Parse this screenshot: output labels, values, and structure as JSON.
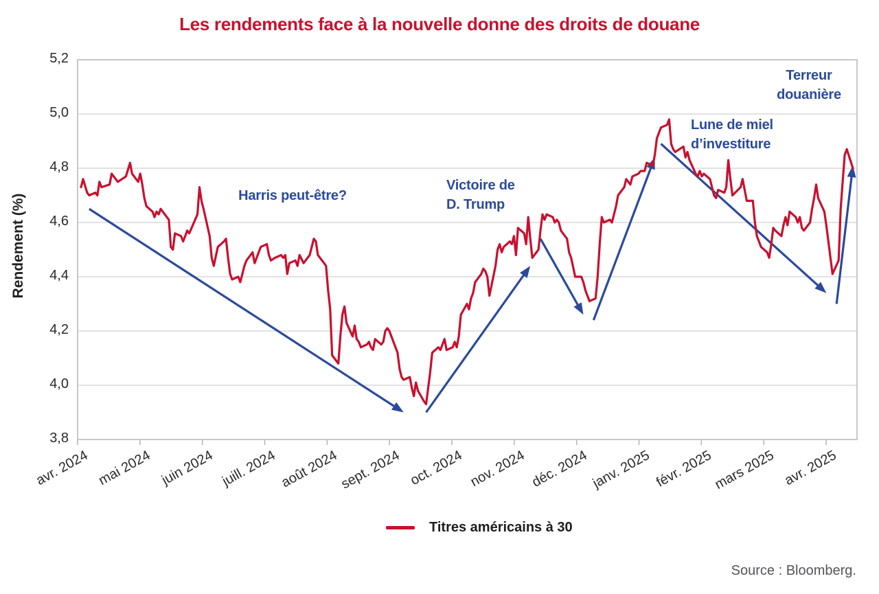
{
  "title": {
    "text": "Les rendements face à la nouvelle donne des droits de douane",
    "color": "#c3142f"
  },
  "y_axis": {
    "label": "Rendement (%)",
    "ticks": [
      "5,2",
      "5,0",
      "4,8",
      "4,6",
      "4,4",
      "4,2",
      "4,0",
      "3,8"
    ],
    "tick_values": [
      5.2,
      5.0,
      4.8,
      4.6,
      4.4,
      4.2,
      4.0,
      3.8
    ]
  },
  "x_axis": {
    "ticks": [
      "avr. 2024",
      "mai 2024",
      "juin 2024",
      "juill. 2024",
      "août 2024",
      "sept. 2024",
      "oct. 2024",
      "nov. 2024",
      "déc. 2024",
      "janv. 2025",
      "févr. 2025",
      "mars 2025",
      "avr. 2025"
    ]
  },
  "annotations": [
    {
      "text": "Harris peut-être?"
    },
    {
      "text": "Victoire de\nD. Trump"
    },
    {
      "text": "Lune de miel\nd’investiture"
    },
    {
      "text": "Terreur\ndouanière"
    }
  ],
  "legend": {
    "label": "Titres américains à 30",
    "swatch_color": "#c8102e"
  },
  "source": {
    "text": "Source : Bloomberg."
  },
  "colors": {
    "line": "#c8102e",
    "annotation_blue": "#2a4a9c",
    "grid": "#d8d8d8",
    "frame": "#c7c7c7"
  },
  "chart_data": {
    "type": "line",
    "title": "Les rendements face à la nouvelle donne des droits de douane",
    "ylabel": "Rendement (%)",
    "ylim": [
      3.8,
      5.2
    ],
    "ytick_step": 0.2,
    "grid": "horizontal",
    "legend_position": "bottom-center",
    "x_range": [
      "2024-04-01",
      "2025-04-14"
    ],
    "series": [
      {
        "name": "Titres américains à 30",
        "color": "#c8102e",
        "points": [
          [
            "2024-04-01",
            4.73
          ],
          [
            "2024-04-02",
            4.76
          ],
          [
            "2024-04-04",
            4.71
          ],
          [
            "2024-04-05",
            4.7
          ],
          [
            "2024-04-08",
            4.71
          ],
          [
            "2024-04-09",
            4.7
          ],
          [
            "2024-04-10",
            4.75
          ],
          [
            "2024-04-11",
            4.73
          ],
          [
            "2024-04-15",
            4.74
          ],
          [
            "2024-04-16",
            4.78
          ],
          [
            "2024-04-19",
            4.75
          ],
          [
            "2024-04-23",
            4.77
          ],
          [
            "2024-04-25",
            4.82
          ],
          [
            "2024-04-26",
            4.78
          ],
          [
            "2024-04-29",
            4.75
          ],
          [
            "2024-04-30",
            4.78
          ],
          [
            "2024-05-01",
            4.74
          ],
          [
            "2024-05-02",
            4.69
          ],
          [
            "2024-05-03",
            4.66
          ],
          [
            "2024-05-06",
            4.64
          ],
          [
            "2024-05-07",
            4.62
          ],
          [
            "2024-05-08",
            4.64
          ],
          [
            "2024-05-09",
            4.63
          ],
          [
            "2024-05-10",
            4.65
          ],
          [
            "2024-05-13",
            4.62
          ],
          [
            "2024-05-14",
            4.61
          ],
          [
            "2024-05-15",
            4.51
          ],
          [
            "2024-05-16",
            4.5
          ],
          [
            "2024-05-17",
            4.56
          ],
          [
            "2024-05-20",
            4.55
          ],
          [
            "2024-05-21",
            4.53
          ],
          [
            "2024-05-22",
            4.55
          ],
          [
            "2024-05-23",
            4.57
          ],
          [
            "2024-05-24",
            4.56
          ],
          [
            "2024-05-28",
            4.63
          ],
          [
            "2024-05-29",
            4.73
          ],
          [
            "2024-05-30",
            4.68
          ],
          [
            "2024-05-31",
            4.65
          ],
          [
            "2024-06-03",
            4.55
          ],
          [
            "2024-06-04",
            4.47
          ],
          [
            "2024-06-05",
            4.44
          ],
          [
            "2024-06-07",
            4.51
          ],
          [
            "2024-06-10",
            4.53
          ],
          [
            "2024-06-11",
            4.54
          ],
          [
            "2024-06-12",
            4.47
          ],
          [
            "2024-06-13",
            4.41
          ],
          [
            "2024-06-14",
            4.39
          ],
          [
            "2024-06-17",
            4.4
          ],
          [
            "2024-06-18",
            4.38
          ],
          [
            "2024-06-20",
            4.44
          ],
          [
            "2024-06-21",
            4.46
          ],
          [
            "2024-06-24",
            4.49
          ],
          [
            "2024-06-25",
            4.45
          ],
          [
            "2024-06-26",
            4.47
          ],
          [
            "2024-06-27",
            4.49
          ],
          [
            "2024-06-28",
            4.51
          ],
          [
            "2024-07-01",
            4.52
          ],
          [
            "2024-07-02",
            4.48
          ],
          [
            "2024-07-03",
            4.46
          ],
          [
            "2024-07-05",
            4.47
          ],
          [
            "2024-07-08",
            4.48
          ],
          [
            "2024-07-09",
            4.47
          ],
          [
            "2024-07-10",
            4.48
          ],
          [
            "2024-07-11",
            4.41
          ],
          [
            "2024-07-12",
            4.45
          ],
          [
            "2024-07-15",
            4.46
          ],
          [
            "2024-07-16",
            4.44
          ],
          [
            "2024-07-17",
            4.48
          ],
          [
            "2024-07-19",
            4.45
          ],
          [
            "2024-07-22",
            4.48
          ],
          [
            "2024-07-24",
            4.54
          ],
          [
            "2024-07-25",
            4.53
          ],
          [
            "2024-07-26",
            4.48
          ],
          [
            "2024-07-29",
            4.45
          ],
          [
            "2024-07-30",
            4.44
          ],
          [
            "2024-07-31",
            4.35
          ],
          [
            "2024-08-01",
            4.28
          ],
          [
            "2024-08-02",
            4.11
          ],
          [
            "2024-08-05",
            4.08
          ],
          [
            "2024-08-06",
            4.18
          ],
          [
            "2024-08-07",
            4.26
          ],
          [
            "2024-08-08",
            4.29
          ],
          [
            "2024-08-09",
            4.23
          ],
          [
            "2024-08-12",
            4.18
          ],
          [
            "2024-08-13",
            4.22
          ],
          [
            "2024-08-14",
            4.17
          ],
          [
            "2024-08-15",
            4.16
          ],
          [
            "2024-08-16",
            4.14
          ],
          [
            "2024-08-19",
            4.15
          ],
          [
            "2024-08-20",
            4.16
          ],
          [
            "2024-08-21",
            4.14
          ],
          [
            "2024-08-22",
            4.13
          ],
          [
            "2024-08-23",
            4.17
          ],
          [
            "2024-08-26",
            4.15
          ],
          [
            "2024-08-27",
            4.16
          ],
          [
            "2024-08-28",
            4.2
          ],
          [
            "2024-08-29",
            4.21
          ],
          [
            "2024-08-30",
            4.2
          ],
          [
            "2024-09-03",
            4.12
          ],
          [
            "2024-09-04",
            4.06
          ],
          [
            "2024-09-05",
            4.03
          ],
          [
            "2024-09-06",
            4.02
          ],
          [
            "2024-09-09",
            4.03
          ],
          [
            "2024-09-10",
            3.99
          ],
          [
            "2024-09-11",
            3.96
          ],
          [
            "2024-09-12",
            4.01
          ],
          [
            "2024-09-13",
            3.98
          ],
          [
            "2024-09-16",
            3.94
          ],
          [
            "2024-09-17",
            3.93
          ],
          [
            "2024-09-18",
            3.99
          ],
          [
            "2024-09-19",
            4.05
          ],
          [
            "2024-09-20",
            4.12
          ],
          [
            "2024-09-23",
            4.14
          ],
          [
            "2024-09-24",
            4.13
          ],
          [
            "2024-09-25",
            4.15
          ],
          [
            "2024-09-26",
            4.17
          ],
          [
            "2024-09-27",
            4.13
          ],
          [
            "2024-09-30",
            4.14
          ],
          [
            "2024-10-01",
            4.16
          ],
          [
            "2024-10-02",
            4.14
          ],
          [
            "2024-10-03",
            4.18
          ],
          [
            "2024-10-04",
            4.26
          ],
          [
            "2024-10-07",
            4.3
          ],
          [
            "2024-10-08",
            4.28
          ],
          [
            "2024-10-09",
            4.32
          ],
          [
            "2024-10-10",
            4.34
          ],
          [
            "2024-10-11",
            4.38
          ],
          [
            "2024-10-14",
            4.41
          ],
          [
            "2024-10-15",
            4.43
          ],
          [
            "2024-10-16",
            4.42
          ],
          [
            "2024-10-17",
            4.4
          ],
          [
            "2024-10-18",
            4.33
          ],
          [
            "2024-10-21",
            4.44
          ],
          [
            "2024-10-22",
            4.5
          ],
          [
            "2024-10-23",
            4.52
          ],
          [
            "2024-10-24",
            4.49
          ],
          [
            "2024-10-25",
            4.51
          ],
          [
            "2024-10-28",
            4.53
          ],
          [
            "2024-10-29",
            4.52
          ],
          [
            "2024-10-30",
            4.55
          ],
          [
            "2024-10-31",
            4.48
          ],
          [
            "2024-11-01",
            4.58
          ],
          [
            "2024-11-04",
            4.56
          ],
          [
            "2024-11-05",
            4.52
          ],
          [
            "2024-11-06",
            4.62
          ],
          [
            "2024-11-07",
            4.54
          ],
          [
            "2024-11-08",
            4.47
          ],
          [
            "2024-11-11",
            4.5
          ],
          [
            "2024-11-12",
            4.57
          ],
          [
            "2024-11-13",
            4.63
          ],
          [
            "2024-11-14",
            4.61
          ],
          [
            "2024-11-15",
            4.63
          ],
          [
            "2024-11-18",
            4.62
          ],
          [
            "2024-11-19",
            4.6
          ],
          [
            "2024-11-20",
            4.61
          ],
          [
            "2024-11-21",
            4.6
          ],
          [
            "2024-11-22",
            4.57
          ],
          [
            "2024-11-25",
            4.54
          ],
          [
            "2024-11-26",
            4.49
          ],
          [
            "2024-11-27",
            4.47
          ],
          [
            "2024-11-29",
            4.4
          ],
          [
            "2024-12-02",
            4.4
          ],
          [
            "2024-12-03",
            4.38
          ],
          [
            "2024-12-04",
            4.35
          ],
          [
            "2024-12-05",
            4.33
          ],
          [
            "2024-12-06",
            4.31
          ],
          [
            "2024-12-09",
            4.32
          ],
          [
            "2024-12-10",
            4.4
          ],
          [
            "2024-12-11",
            4.52
          ],
          [
            "2024-12-12",
            4.62
          ],
          [
            "2024-12-13",
            4.6
          ],
          [
            "2024-12-16",
            4.61
          ],
          [
            "2024-12-17",
            4.6
          ],
          [
            "2024-12-18",
            4.63
          ],
          [
            "2024-12-19",
            4.66
          ],
          [
            "2024-12-20",
            4.7
          ],
          [
            "2024-12-23",
            4.73
          ],
          [
            "2024-12-24",
            4.76
          ],
          [
            "2024-12-26",
            4.74
          ],
          [
            "2024-12-27",
            4.77
          ],
          [
            "2024-12-30",
            4.78
          ],
          [
            "2024-12-31",
            4.79
          ],
          [
            "2025-01-02",
            4.79
          ],
          [
            "2025-01-03",
            4.82
          ],
          [
            "2025-01-06",
            4.81
          ],
          [
            "2025-01-07",
            4.85
          ],
          [
            "2025-01-08",
            4.91
          ],
          [
            "2025-01-09",
            4.93
          ],
          [
            "2025-01-10",
            4.95
          ],
          [
            "2025-01-13",
            4.96
          ],
          [
            "2025-01-14",
            4.98
          ],
          [
            "2025-01-15",
            4.89
          ],
          [
            "2025-01-16",
            4.87
          ],
          [
            "2025-01-17",
            4.86
          ],
          [
            "2025-01-21",
            4.88
          ],
          [
            "2025-01-22",
            4.84
          ],
          [
            "2025-01-23",
            4.86
          ],
          [
            "2025-01-24",
            4.83
          ],
          [
            "2025-01-27",
            4.78
          ],
          [
            "2025-01-28",
            4.77
          ],
          [
            "2025-01-29",
            4.79
          ],
          [
            "2025-01-30",
            4.77
          ],
          [
            "2025-01-31",
            4.78
          ],
          [
            "2025-02-03",
            4.76
          ],
          [
            "2025-02-04",
            4.73
          ],
          [
            "2025-02-05",
            4.7
          ],
          [
            "2025-02-06",
            4.69
          ],
          [
            "2025-02-07",
            4.72
          ],
          [
            "2025-02-10",
            4.71
          ],
          [
            "2025-02-11",
            4.73
          ],
          [
            "2025-02-12",
            4.83
          ],
          [
            "2025-02-13",
            4.76
          ],
          [
            "2025-02-14",
            4.7
          ],
          [
            "2025-02-18",
            4.73
          ],
          [
            "2025-02-19",
            4.76
          ],
          [
            "2025-02-20",
            4.72
          ],
          [
            "2025-02-21",
            4.68
          ],
          [
            "2025-02-24",
            4.68
          ],
          [
            "2025-02-25",
            4.6
          ],
          [
            "2025-02-26",
            4.55
          ],
          [
            "2025-02-27",
            4.53
          ],
          [
            "2025-02-28",
            4.51
          ],
          [
            "2025-03-03",
            4.49
          ],
          [
            "2025-03-04",
            4.47
          ],
          [
            "2025-03-05",
            4.52
          ],
          [
            "2025-03-06",
            4.58
          ],
          [
            "2025-03-07",
            4.57
          ],
          [
            "2025-03-10",
            4.55
          ],
          [
            "2025-03-11",
            4.59
          ],
          [
            "2025-03-12",
            4.62
          ],
          [
            "2025-03-13",
            4.59
          ],
          [
            "2025-03-14",
            4.64
          ],
          [
            "2025-03-17",
            4.62
          ],
          [
            "2025-03-18",
            4.6
          ],
          [
            "2025-03-19",
            4.62
          ],
          [
            "2025-03-20",
            4.58
          ],
          [
            "2025-03-21",
            4.57
          ],
          [
            "2025-03-24",
            4.6
          ],
          [
            "2025-03-25",
            4.65
          ],
          [
            "2025-03-26",
            4.69
          ],
          [
            "2025-03-27",
            4.74
          ],
          [
            "2025-03-28",
            4.69
          ],
          [
            "2025-03-31",
            4.64
          ],
          [
            "2025-04-01",
            4.59
          ],
          [
            "2025-04-02",
            4.53
          ],
          [
            "2025-04-03",
            4.47
          ],
          [
            "2025-04-04",
            4.41
          ],
          [
            "2025-04-07",
            4.46
          ],
          [
            "2025-04-08",
            4.65
          ],
          [
            "2025-04-09",
            4.75
          ],
          [
            "2025-04-10",
            4.85
          ],
          [
            "2025-04-11",
            4.87
          ],
          [
            "2025-04-14",
            4.8
          ]
        ]
      }
    ],
    "trend_arrows": [
      {
        "from": [
          "2024-04-05",
          4.65
        ],
        "to": [
          "2024-09-06",
          3.9
        ]
      },
      {
        "from": [
          "2024-09-17",
          3.9
        ],
        "to": [
          "2024-11-07",
          4.44
        ]
      },
      {
        "from": [
          "2024-11-12",
          4.54
        ],
        "to": [
          "2024-12-03",
          4.26
        ]
      },
      {
        "from": [
          "2024-12-08",
          4.24
        ],
        "to": [
          "2025-01-07",
          4.84
        ]
      },
      {
        "from": [
          "2025-01-10",
          4.89
        ],
        "to": [
          "2025-04-01",
          4.34
        ]
      },
      {
        "from": [
          "2025-04-06",
          4.3
        ],
        "to": [
          "2025-04-14",
          4.81
        ]
      }
    ]
  }
}
